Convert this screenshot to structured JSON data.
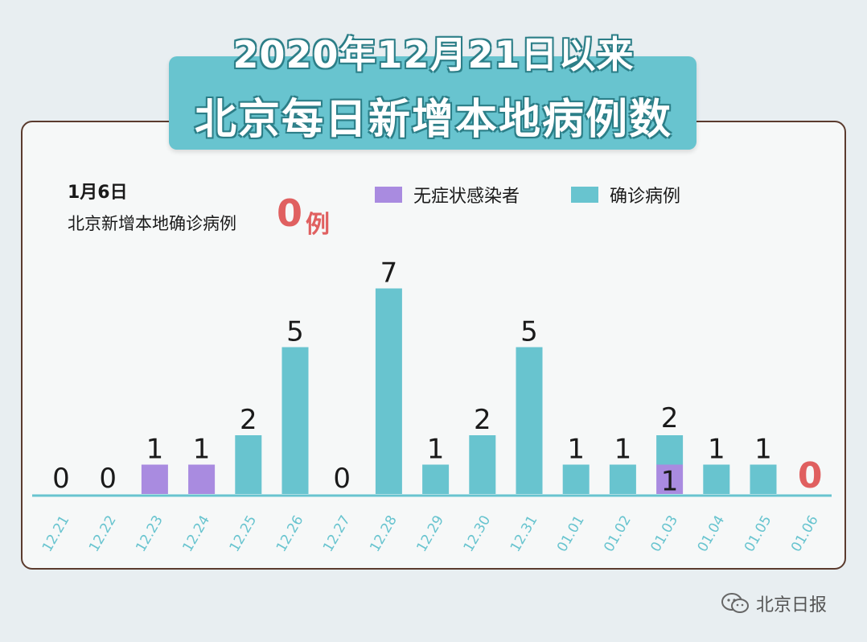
{
  "title": {
    "line1": "2020年12月21日以来",
    "line2": "北京每日新增本地病例数"
  },
  "annotation": {
    "date": "1月6日",
    "text": "北京新增本地确诊病例",
    "number": "0",
    "unit": "例"
  },
  "legend": [
    {
      "name": "无症状感染者",
      "color": "#a98be0"
    },
    {
      "name": "确诊病例",
      "color": "#68c4cf"
    }
  ],
  "colors": {
    "confirmed": "#68c4cf",
    "asymptomatic": "#a98be0",
    "axis": "#68c4cf",
    "label": "#1a1a1a",
    "highlight": "#e06060",
    "tick": "#68c4cf"
  },
  "chart_data": {
    "type": "bar",
    "stacked": true,
    "categories": [
      "12.21",
      "12.22",
      "12.23",
      "12.24",
      "12.25",
      "12.26",
      "12.27",
      "12.28",
      "12.29",
      "12.30",
      "12.31",
      "01.01",
      "01.02",
      "01.03",
      "01.04",
      "01.05",
      "01.06"
    ],
    "series": [
      {
        "name": "无症状感染者",
        "values": [
          0,
          0,
          1,
          1,
          0,
          0,
          0,
          0,
          0,
          0,
          0,
          0,
          0,
          1,
          0,
          0,
          0
        ]
      },
      {
        "name": "确诊病例",
        "values": [
          0,
          0,
          0,
          0,
          2,
          5,
          0,
          7,
          1,
          2,
          5,
          1,
          1,
          1,
          1,
          1,
          0
        ]
      }
    ],
    "data_labels": [
      [
        "0"
      ],
      [
        "0"
      ],
      [
        "1"
      ],
      [
        "1"
      ],
      [
        "2"
      ],
      [
        "5"
      ],
      [
        "0"
      ],
      [
        "7"
      ],
      [
        "1"
      ],
      [
        "2"
      ],
      [
        "5"
      ],
      [
        "1"
      ],
      [
        "1"
      ],
      [
        "1",
        "2"
      ],
      [
        "1"
      ],
      [
        "1"
      ],
      [
        "0"
      ]
    ],
    "highlight_index": 16,
    "ylim": [
      0,
      7
    ]
  },
  "footer": {
    "icon": "wechat-icon",
    "text": "北京日报"
  }
}
